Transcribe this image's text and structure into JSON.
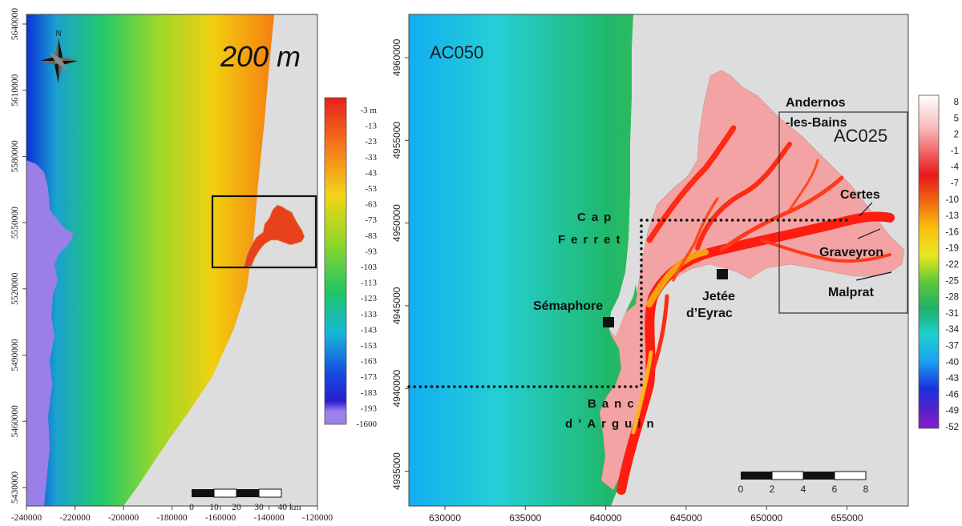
{
  "left_map": {
    "title": "200 m",
    "north_label": "N",
    "x_ticks": [
      "-240000",
      "-220000",
      "-200000",
      "-180000",
      "-160000",
      "-140000",
      "-120000"
    ],
    "y_ticks": [
      "5640000",
      "5610000",
      "5580000",
      "5550000",
      "5520000",
      "5490000",
      "5460000",
      "5430000"
    ],
    "colorbar_labels": [
      "-3 m",
      "-13",
      "-23",
      "-33",
      "-43",
      "-53",
      "-63",
      "-73",
      "-83",
      "-93",
      "-103",
      "-113",
      "-123",
      "-133",
      "-143",
      "-153",
      "-163",
      "-173",
      "-183",
      "-193",
      "-1600"
    ],
    "scale_labels": [
      "0",
      "10",
      "20",
      "30",
      "40 km"
    ]
  },
  "right_map": {
    "panel_label": "AC050",
    "inset_label": "AC025",
    "x_ticks": [
      "630000",
      "635000",
      "640000",
      "645000",
      "650000",
      "655000"
    ],
    "y_ticks": [
      "4960000",
      "4955000",
      "4950000",
      "4945000",
      "4940000",
      "4935000"
    ],
    "colorbar_labels": [
      "8",
      "5",
      "2",
      "-1",
      "-4",
      "-7",
      "-10",
      "-13",
      "-16",
      "-19",
      "-22",
      "-25",
      "-28",
      "-31",
      "-34",
      "-37",
      "-40",
      "-43",
      "-46",
      "-49",
      "-52"
    ],
    "scale_labels": [
      "0",
      "2",
      "4",
      "6",
      "8"
    ],
    "places": {
      "andernos_1": "Andernos",
      "andernos_2": "-les-Bains",
      "certes": "Certes",
      "graveyron": "Graveyron",
      "malprat": "Malprat",
      "cap": "Cap",
      "ferret": "Ferret",
      "semaphore": "Sémaphore",
      "jetee_1": "Jetée",
      "jetee_2": "d’Eyrac",
      "banc": "Banc",
      "arguin": "d’Arguin"
    }
  },
  "colors": {
    "land": "#dddddd",
    "deep": "#9b7fe8",
    "line": "#111111"
  }
}
